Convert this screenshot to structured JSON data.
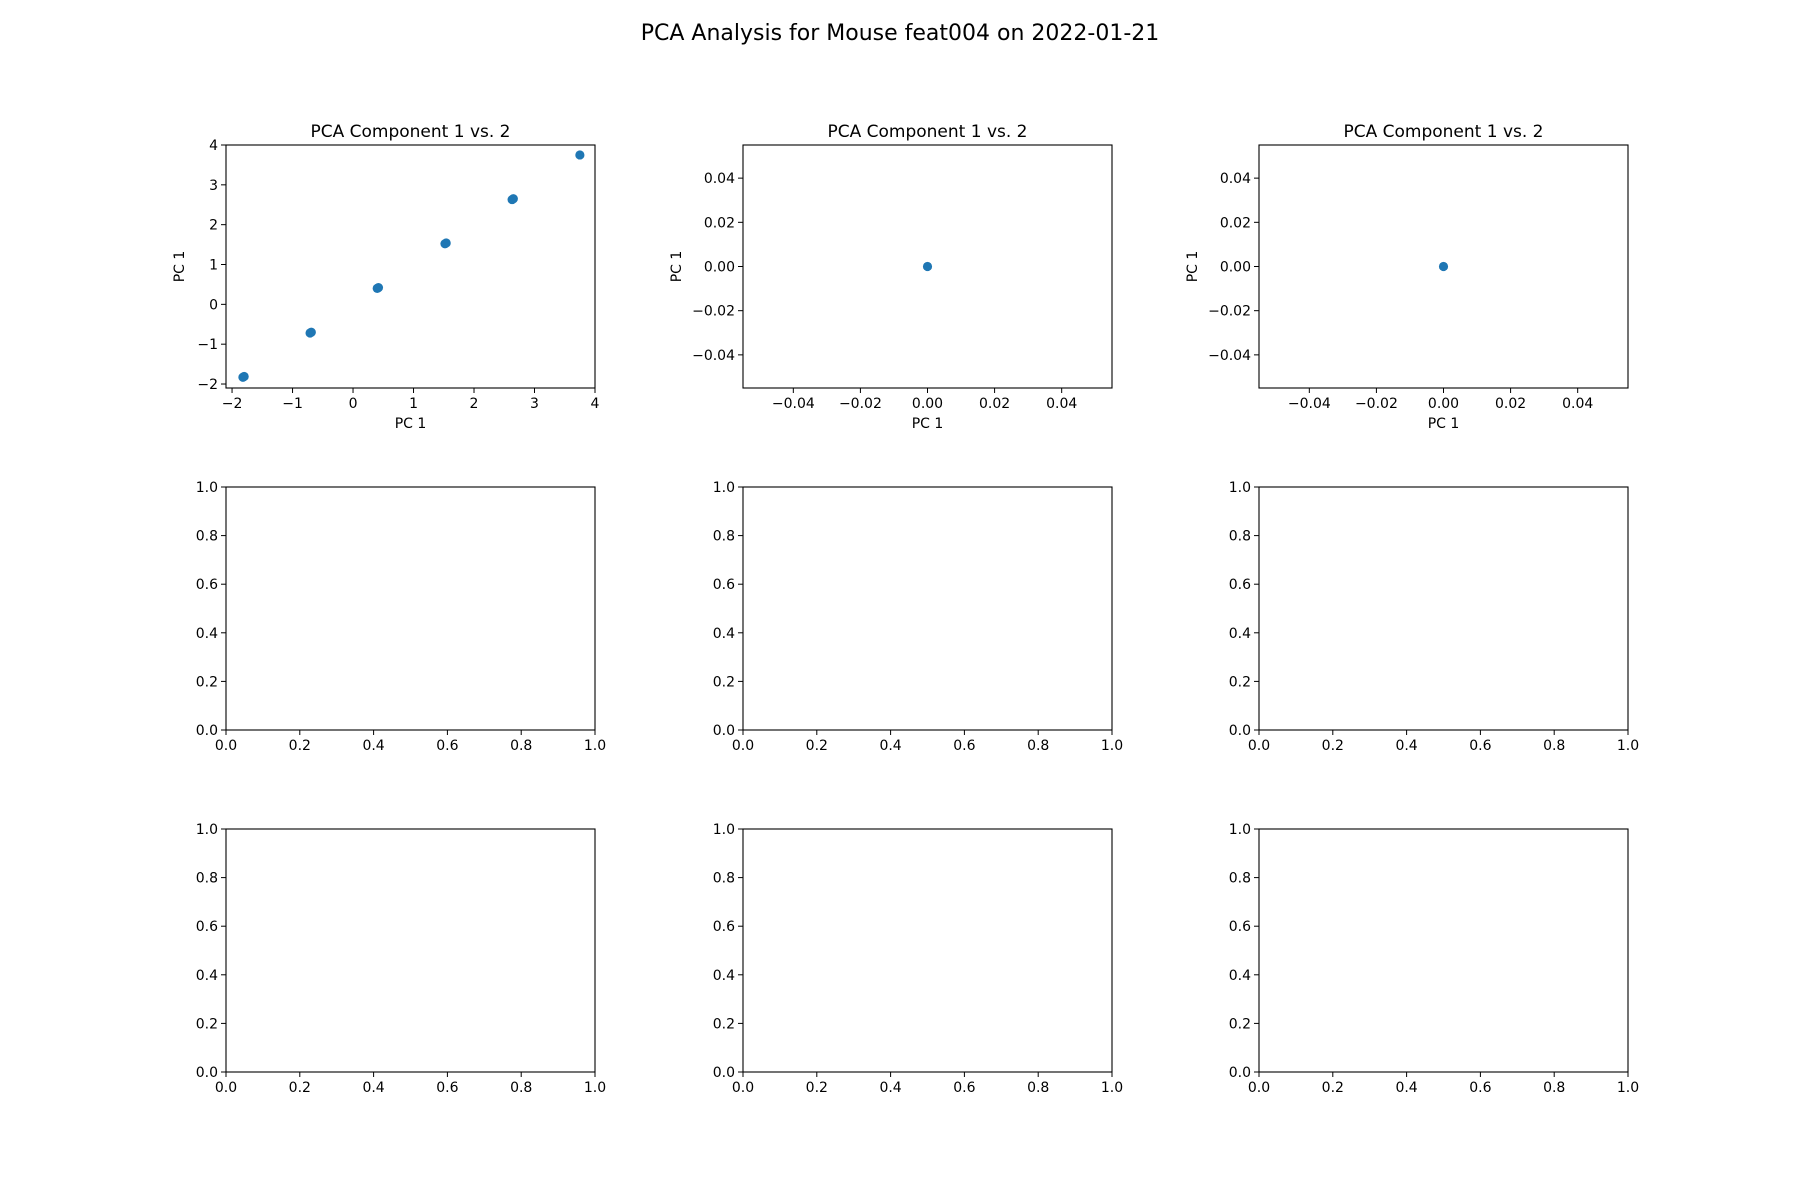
{
  "figure": {
    "title": "PCA Analysis for Mouse feat004 on 2022-01-21"
  },
  "colors": {
    "point": "#1f77b4",
    "axes": "#000000",
    "background": "#ffffff"
  },
  "chart_data": [
    {
      "type": "scatter",
      "title": "PCA Component 1 vs. 2",
      "xlabel": "PC 1",
      "ylabel": "PC 1",
      "xlim": [
        -2.1,
        4.0
      ],
      "ylim": [
        -2.1,
        4.0
      ],
      "xticks": [
        -2,
        -1,
        0,
        1,
        2,
        3,
        4
      ],
      "yticks": [
        -2,
        -1,
        0,
        1,
        2,
        3,
        4
      ],
      "xticklabels": [
        "−2",
        "−1",
        "0",
        "1",
        "2",
        "3",
        "4"
      ],
      "yticklabels": [
        "−2",
        "−1",
        "0",
        "1",
        "2",
        "3",
        "4"
      ],
      "points": [
        {
          "x": -1.82,
          "y": -1.83
        },
        {
          "x": -1.8,
          "y": -1.81
        },
        {
          "x": -0.71,
          "y": -0.72
        },
        {
          "x": -0.69,
          "y": -0.7
        },
        {
          "x": 0.4,
          "y": 0.4
        },
        {
          "x": 0.42,
          "y": 0.42
        },
        {
          "x": 1.52,
          "y": 1.52
        },
        {
          "x": 1.54,
          "y": 1.54
        },
        {
          "x": 2.63,
          "y": 2.63
        },
        {
          "x": 2.65,
          "y": 2.65
        },
        {
          "x": 3.75,
          "y": 3.75
        }
      ]
    },
    {
      "type": "scatter",
      "title": "PCA Component 1 vs. 2",
      "xlabel": "PC 1",
      "ylabel": "PC 1",
      "xlim": [
        -0.055,
        0.055
      ],
      "ylim": [
        -0.055,
        0.055
      ],
      "xticks": [
        -0.04,
        -0.02,
        0.0,
        0.02,
        0.04
      ],
      "yticks": [
        -0.04,
        -0.02,
        0.0,
        0.02,
        0.04
      ],
      "xticklabels": [
        "−0.04",
        "−0.02",
        "0.00",
        "0.02",
        "0.04"
      ],
      "yticklabels": [
        "−0.04",
        "−0.02",
        "0.00",
        "0.02",
        "0.04"
      ],
      "points": [
        {
          "x": 0.0,
          "y": 0.0
        }
      ]
    },
    {
      "type": "scatter",
      "title": "PCA Component 1 vs. 2",
      "xlabel": "PC 1",
      "ylabel": "PC 1",
      "xlim": [
        -0.055,
        0.055
      ],
      "ylim": [
        -0.055,
        0.055
      ],
      "xticks": [
        -0.04,
        -0.02,
        0.0,
        0.02,
        0.04
      ],
      "yticks": [
        -0.04,
        -0.02,
        0.0,
        0.02,
        0.04
      ],
      "xticklabels": [
        "−0.04",
        "−0.02",
        "0.00",
        "0.02",
        "0.04"
      ],
      "yticklabels": [
        "−0.04",
        "−0.02",
        "0.00",
        "0.02",
        "0.04"
      ],
      "points": [
        {
          "x": 0.0,
          "y": 0.0
        }
      ]
    },
    {
      "type": "scatter",
      "title": "",
      "xlabel": "",
      "ylabel": "",
      "xlim": [
        0,
        1
      ],
      "ylim": [
        0,
        1
      ],
      "xticks": [
        0,
        0.2,
        0.4,
        0.6,
        0.8,
        1.0
      ],
      "yticks": [
        0,
        0.2,
        0.4,
        0.6,
        0.8,
        1.0
      ],
      "xticklabels": [
        "0.0",
        "0.2",
        "0.4",
        "0.6",
        "0.8",
        "1.0"
      ],
      "yticklabels": [
        "0.0",
        "0.2",
        "0.4",
        "0.6",
        "0.8",
        "1.0"
      ],
      "points": []
    },
    {
      "type": "scatter",
      "title": "",
      "xlabel": "",
      "ylabel": "",
      "xlim": [
        0,
        1
      ],
      "ylim": [
        0,
        1
      ],
      "xticks": [
        0,
        0.2,
        0.4,
        0.6,
        0.8,
        1.0
      ],
      "yticks": [
        0,
        0.2,
        0.4,
        0.6,
        0.8,
        1.0
      ],
      "xticklabels": [
        "0.0",
        "0.2",
        "0.4",
        "0.6",
        "0.8",
        "1.0"
      ],
      "yticklabels": [
        "0.0",
        "0.2",
        "0.4",
        "0.6",
        "0.8",
        "1.0"
      ],
      "points": []
    },
    {
      "type": "scatter",
      "title": "",
      "xlabel": "",
      "ylabel": "",
      "xlim": [
        0,
        1
      ],
      "ylim": [
        0,
        1
      ],
      "xticks": [
        0,
        0.2,
        0.4,
        0.6,
        0.8,
        1.0
      ],
      "yticks": [
        0,
        0.2,
        0.4,
        0.6,
        0.8,
        1.0
      ],
      "xticklabels": [
        "0.0",
        "0.2",
        "0.4",
        "0.6",
        "0.8",
        "1.0"
      ],
      "yticklabels": [
        "0.0",
        "0.2",
        "0.4",
        "0.6",
        "0.8",
        "1.0"
      ],
      "points": []
    },
    {
      "type": "scatter",
      "title": "",
      "xlabel": "",
      "ylabel": "",
      "xlim": [
        0,
        1
      ],
      "ylim": [
        0,
        1
      ],
      "xticks": [
        0,
        0.2,
        0.4,
        0.6,
        0.8,
        1.0
      ],
      "yticks": [
        0,
        0.2,
        0.4,
        0.6,
        0.8,
        1.0
      ],
      "xticklabels": [
        "0.0",
        "0.2",
        "0.4",
        "0.6",
        "0.8",
        "1.0"
      ],
      "yticklabels": [
        "0.0",
        "0.2",
        "0.4",
        "0.6",
        "0.8",
        "1.0"
      ],
      "points": []
    },
    {
      "type": "scatter",
      "title": "",
      "xlabel": "",
      "ylabel": "",
      "xlim": [
        0,
        1
      ],
      "ylim": [
        0,
        1
      ],
      "xticks": [
        0,
        0.2,
        0.4,
        0.6,
        0.8,
        1.0
      ],
      "yticks": [
        0,
        0.2,
        0.4,
        0.6,
        0.8,
        1.0
      ],
      "xticklabels": [
        "0.0",
        "0.2",
        "0.4",
        "0.6",
        "0.8",
        "1.0"
      ],
      "yticklabels": [
        "0.0",
        "0.2",
        "0.4",
        "0.6",
        "0.8",
        "1.0"
      ],
      "points": []
    },
    {
      "type": "scatter",
      "title": "",
      "xlabel": "",
      "ylabel": "",
      "xlim": [
        0,
        1
      ],
      "ylim": [
        0,
        1
      ],
      "xticks": [
        0,
        0.2,
        0.4,
        0.6,
        0.8,
        1.0
      ],
      "yticks": [
        0,
        0.2,
        0.4,
        0.6,
        0.8,
        1.0
      ],
      "xticklabels": [
        "0.0",
        "0.2",
        "0.4",
        "0.6",
        "0.8",
        "1.0"
      ],
      "yticklabels": [
        "0.0",
        "0.2",
        "0.4",
        "0.6",
        "0.8",
        "1.0"
      ],
      "points": []
    }
  ]
}
